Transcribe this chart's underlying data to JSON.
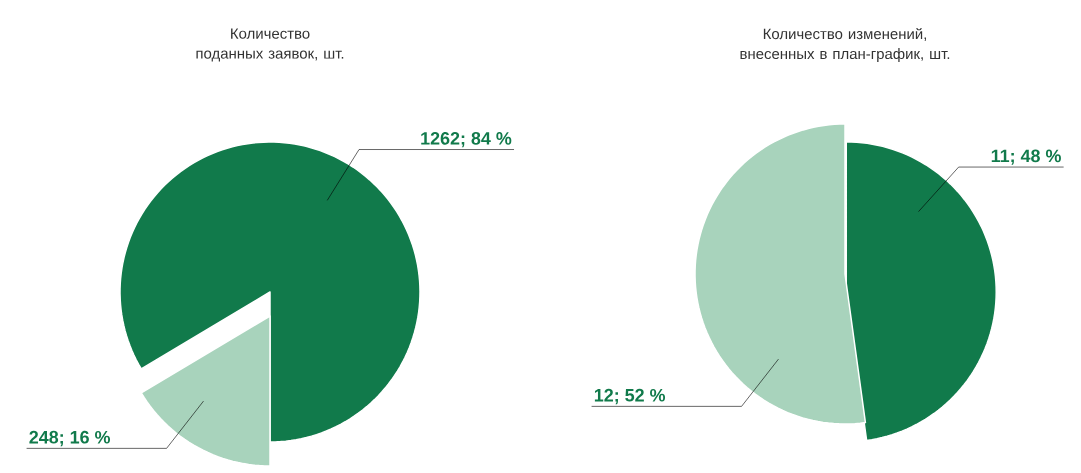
{
  "chart_data": [
    {
      "type": "pie",
      "title": "Количество поданных заявок, шт.",
      "categories": [
        null,
        null
      ],
      "values": [
        1262,
        248
      ],
      "value_labels": [
        "1262; 84 %",
        "248; 16 %"
      ],
      "colors": [
        "#117a4b",
        "#a8d3bc"
      ]
    },
    {
      "type": "pie",
      "title": "Количество изменений, внесенных в план-график, шт.",
      "categories": [
        null,
        null
      ],
      "values": [
        11,
        12
      ],
      "value_labels": [
        "11; 48 %",
        "12; 52 %"
      ],
      "colors": [
        "#117a4b",
        "#a8d3bc"
      ]
    }
  ]
}
